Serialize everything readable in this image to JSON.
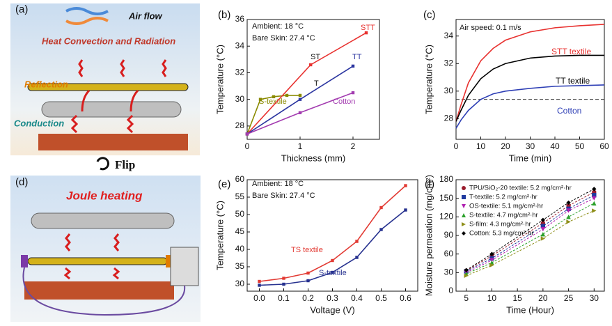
{
  "panels": [
    {
      "label": "(a)",
      "texts": [
        "Air flow",
        "Heat Convection and Radiation",
        "Reflection",
        "Conduction"
      ]
    },
    {
      "label": "(d)",
      "texts": [
        "Joule heating"
      ]
    }
  ],
  "flip": "Flip",
  "chart_data": [
    {
      "type": "line",
      "label": "(b)",
      "x_label": "Thickness (mm)",
      "y_label": "Temperature (°C)",
      "xlim": [
        0,
        2.5
      ],
      "ylim": [
        27,
        36
      ],
      "xticks": [
        0,
        1,
        2
      ],
      "yticks": [
        28,
        30,
        32,
        34,
        36
      ],
      "annotations": [
        "Ambient: 18 °C",
        "Bare Skin: 27.4 °C",
        "ST",
        "T"
      ],
      "markers": true,
      "series": [
        {
          "name": "S-textile",
          "color": "#8a8a00",
          "x": [
            0,
            0.25,
            0.5,
            0.75,
            1
          ],
          "values": [
            27.4,
            30.0,
            30.2,
            30.3,
            30.3
          ]
        },
        {
          "name": "STT",
          "color": "#e8312f",
          "x": [
            0,
            1.2,
            2.25
          ],
          "values": [
            27.4,
            32.6,
            35.0
          ]
        },
        {
          "name": "TT",
          "color": "#2b35a0",
          "x": [
            0,
            1,
            2
          ],
          "values": [
            27.4,
            30.0,
            32.5
          ]
        },
        {
          "name": "Cotton",
          "color": "#a33cb0",
          "x": [
            0,
            1,
            2
          ],
          "values": [
            27.4,
            29.0,
            30.5
          ]
        }
      ]
    },
    {
      "type": "line",
      "label": "(c)",
      "x_label": "Time (min)",
      "y_label": "Temperature (°C)",
      "xlim": [
        0,
        60
      ],
      "ylim": [
        26.5,
        35.2
      ],
      "xticks": [
        0,
        10,
        20,
        30,
        40,
        50,
        60
      ],
      "yticks": [
        28,
        30,
        32,
        34
      ],
      "annotations": [
        "Air speed: 0.1 m/s"
      ],
      "hline": 29.4,
      "markers": false,
      "x": [
        0,
        2,
        5,
        10,
        15,
        20,
        30,
        40,
        50,
        60
      ],
      "series": [
        {
          "name": "STT textile",
          "color": "#e8312f",
          "values": [
            27.8,
            29.0,
            30.6,
            32.2,
            33.1,
            33.7,
            34.3,
            34.6,
            34.75,
            34.85
          ]
        },
        {
          "name": "TT textile",
          "color": "#000000",
          "values": [
            27.8,
            28.6,
            29.7,
            30.9,
            31.6,
            32.0,
            32.4,
            32.55,
            32.6,
            32.6
          ]
        },
        {
          "name": "Cotton",
          "color": "#2e3fb5",
          "values": [
            27.3,
            27.9,
            28.6,
            29.4,
            29.8,
            30.0,
            30.2,
            30.35,
            30.4,
            30.45
          ]
        }
      ]
    },
    {
      "type": "line",
      "label": "(e)",
      "x_label": "Voltage (V)",
      "y_label": "Temperature (°C)",
      "xlim": [
        -0.05,
        0.65
      ],
      "ylim": [
        28,
        60
      ],
      "xticks": [
        {
          "value": 0,
          "label": "0.0"
        },
        0.1,
        0.2,
        0.3,
        0.4,
        0.5,
        0.6
      ],
      "yticks": [
        30,
        35,
        40,
        45,
        50,
        55,
        60
      ],
      "annotations": [
        "Ambient: 18 °C",
        "Bare Skin: 27.4 °C"
      ],
      "markers": true,
      "x": [
        0,
        0.1,
        0.2,
        0.3,
        0.4,
        0.5,
        0.6
      ],
      "series": [
        {
          "name": "TS textile",
          "color": "#e23a33",
          "values": [
            30.8,
            31.7,
            33.2,
            36.8,
            42.3,
            52.0,
            58.3
          ]
        },
        {
          "name": "S-textile",
          "color": "#26318f",
          "values": [
            29.7,
            30.0,
            31.0,
            33.4,
            37.7,
            45.7,
            51.3
          ]
        }
      ]
    },
    {
      "type": "scatter",
      "label": "(f)",
      "x_label": "Time (Hour)",
      "y_label": "Moisture permeation (mg/cm²)",
      "xlim": [
        3,
        32
      ],
      "ylim": [
        0,
        180
      ],
      "xticks": [
        5,
        10,
        15,
        20,
        25,
        30
      ],
      "yticks": [
        0,
        30,
        60,
        90,
        120,
        150,
        180
      ],
      "x": [
        5,
        10,
        20,
        25,
        30
      ],
      "series": [
        {
          "name": "TPU/SiO₂-20 textile: 5.2 mg/cm²·hr",
          "color": "#9b1d2e",
          "marker": "circle",
          "values": [
            33,
            57,
            110,
            138,
            160
          ]
        },
        {
          "name": "T-textile: 5.2 mg/cm²·hr",
          "color": "#1f3a9e",
          "marker": "square",
          "values": [
            32,
            53,
            105,
            133,
            155
          ]
        },
        {
          "name": "OS-textile: 5.1 mg/cm²·hr",
          "color": "#b020b0",
          "marker": "triangle-down",
          "values": [
            30,
            50,
            100,
            130,
            150
          ]
        },
        {
          "name": "S-textile: 4.7 mg/cm²·hr",
          "color": "#2aa02a",
          "marker": "triangle-up",
          "values": [
            28,
            46,
            92,
            120,
            142
          ]
        },
        {
          "name": "S-film: 4.3 mg/cm²·hr",
          "color": "#8f8f1a",
          "marker": "triangle-right",
          "values": [
            25,
            42,
            85,
            112,
            130
          ]
        },
        {
          "name": "Cotton: 5.3 mg/cm²·hr",
          "color": "#000000",
          "marker": "diamond",
          "values": [
            34,
            60,
            115,
            143,
            165
          ]
        }
      ]
    }
  ]
}
